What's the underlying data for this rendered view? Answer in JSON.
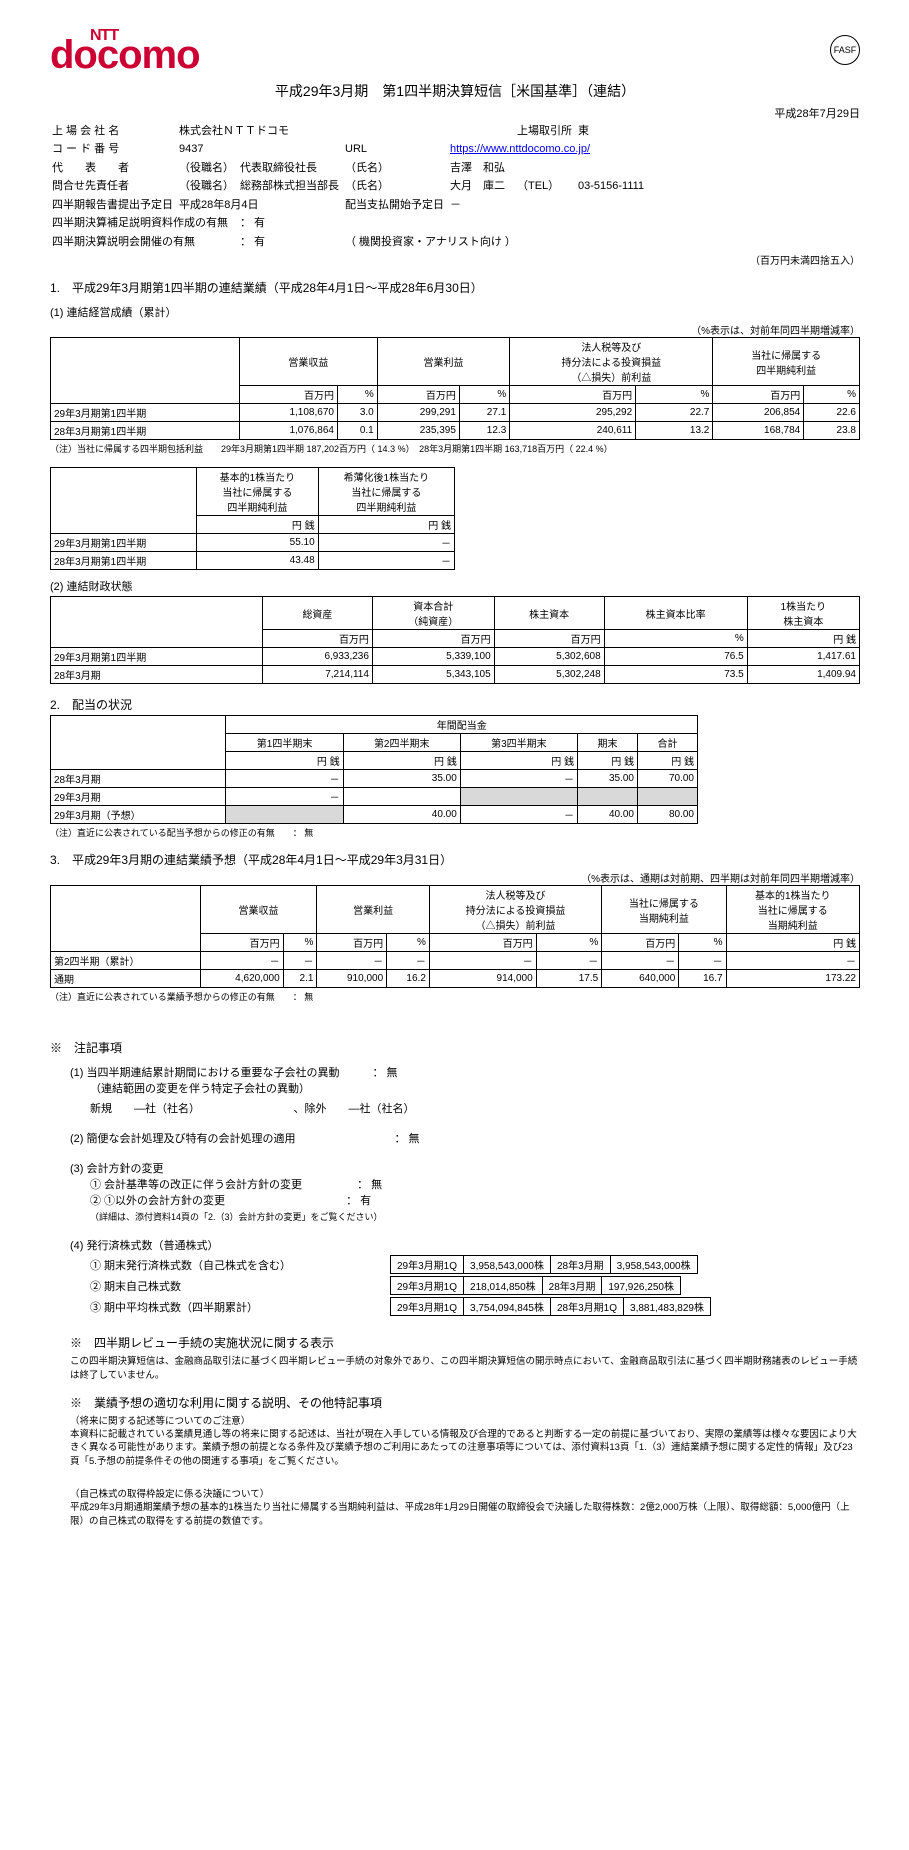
{
  "logo": {
    "ntt": "NTT",
    "main": "docomo",
    "color": "#cc0033"
  },
  "title": "平成29年3月期　第1四半期決算短信［米国基準］（連結）",
  "report_date": "平成28年7月29日",
  "company": {
    "listed_name_lbl": "上 場 会 社 名",
    "listed_name": "株式会社ＮＴＴドコモ",
    "exchange_lbl": "上場取引所",
    "exchange": "東",
    "code_lbl": "コ ー ド 番 号",
    "code": "9437",
    "url_lbl": "URL",
    "url": "https://www.nttdocomo.co.jp/",
    "rep_lbl": "代　　表　　者",
    "rep_title_lbl": "（役職名）",
    "rep_title": "代表取締役社長",
    "name_lbl": "（氏名）",
    "rep_name": "吉澤　和弘",
    "contact_lbl": "問合せ先責任者",
    "contact_title": "総務部株式担当部長",
    "contact_name": "大月　庫二",
    "tel_lbl": "（TEL）",
    "tel": "03-5156-1111",
    "filing_lbl": "四半期報告書提出予定日",
    "filing": "平成28年8月4日",
    "div_start_lbl": "配当支払開始予定日",
    "div_start": "－",
    "supp_lbl": "四半期決算補足説明資料作成の有無",
    "supp": "： 有",
    "briefing_lbl": "四半期決算説明会開催の有無",
    "briefing": "： 有",
    "briefing_note": "（ 機関投資家・アナリスト向け ）",
    "rounding": "（百万円未満四捨五入）"
  },
  "s1": {
    "hdr": "1.　平成29年3月期第1四半期の連結業績（平成28年4月1日～平成28年6月30日）",
    "t1": {
      "sub": "(1) 連結経営成績（累計）",
      "note": "（%表示は、対前年同四半期増減率）",
      "cols": [
        "営業収益",
        "営業利益",
        "法人税等及び\n持分法による投資損益\n（△損失）前利益",
        "当社に帰属する\n四半期純利益"
      ],
      "units": [
        "百万円",
        "%",
        "百万円",
        "%",
        "百万円",
        "%",
        "百万円",
        "%"
      ],
      "rows": [
        {
          "lbl": "29年3月期第1四半期",
          "v": [
            "1,108,670",
            "3.0",
            "299,291",
            "27.1",
            "295,292",
            "22.7",
            "206,854",
            "22.6"
          ]
        },
        {
          "lbl": "28年3月期第1四半期",
          "v": [
            "1,076,864",
            "0.1",
            "235,395",
            "12.3",
            "240,611",
            "13.2",
            "168,784",
            "23.8"
          ]
        }
      ],
      "foot": "（注）当社に帰属する四半期包括利益　　29年3月期第1四半期 187,202百万円（ 14.3 %）　28年3月期第1四半期 163,718百万円（ 22.4 %）"
    },
    "t2": {
      "cols": [
        "基本的1株当たり\n当社に帰属する\n四半期純利益",
        "希薄化後1株当たり\n当社に帰属する\n四半期純利益"
      ],
      "units": [
        "円 銭",
        "円 銭"
      ],
      "rows": [
        {
          "lbl": "29年3月期第1四半期",
          "v": [
            "55.10",
            "－"
          ]
        },
        {
          "lbl": "28年3月期第1四半期",
          "v": [
            "43.48",
            "－"
          ]
        }
      ]
    },
    "t3": {
      "sub": "(2) 連結財政状態",
      "cols": [
        "総資産",
        "資本合計\n（純資産）",
        "株主資本",
        "株主資本比率",
        "1株当たり\n株主資本"
      ],
      "units": [
        "百万円",
        "百万円",
        "百万円",
        "%",
        "円 銭"
      ],
      "rows": [
        {
          "lbl": "29年3月期第1四半期",
          "v": [
            "6,933,236",
            "5,339,100",
            "5,302,608",
            "76.5",
            "1,417.61"
          ]
        },
        {
          "lbl": "28年3月期",
          "v": [
            "7,214,114",
            "5,343,105",
            "5,302,248",
            "73.5",
            "1,409.94"
          ]
        }
      ]
    }
  },
  "s2": {
    "hdr": "2.　配当の状況",
    "top": "年間配当金",
    "cols": [
      "第1四半期末",
      "第2四半期末",
      "第3四半期末",
      "期末",
      "合計"
    ],
    "unit": "円 銭",
    "rows": [
      {
        "lbl": "28年3月期",
        "v": [
          "－",
          "35.00",
          "－",
          "35.00",
          "70.00"
        ]
      },
      {
        "lbl": "29年3月期",
        "v": [
          "－",
          "",
          "",
          "",
          ""
        ],
        "shade": [
          false,
          false,
          true,
          true,
          true
        ]
      },
      {
        "lbl": "29年3月期（予想）",
        "v": [
          "",
          "40.00",
          "－",
          "40.00",
          "80.00"
        ],
        "shade": [
          true,
          false,
          false,
          false,
          false
        ]
      }
    ],
    "foot": "（注）直近に公表されている配当予想からの修正の有無　　： 無"
  },
  "s3": {
    "hdr": "3.　平成29年3月期の連結業績予想（平成28年4月1日～平成29年3月31日）",
    "note": "（%表示は、通期は対前期、四半期は対前年同四半期増減率）",
    "cols": [
      "営業収益",
      "営業利益",
      "法人税等及び\n持分法による投資損益\n（△損失）前利益",
      "当社に帰属する\n当期純利益",
      "基本的1株当たり\n当社に帰属する\n当期純利益"
    ],
    "units": [
      "百万円",
      "%",
      "百万円",
      "%",
      "百万円",
      "%",
      "百万円",
      "%",
      "円 銭"
    ],
    "rows": [
      {
        "lbl": "第2四半期（累計）",
        "v": [
          "－",
          "－",
          "－",
          "－",
          "－",
          "－",
          "－",
          "－",
          "－"
        ]
      },
      {
        "lbl": "通期",
        "v": [
          "4,620,000",
          "2.1",
          "910,000",
          "16.2",
          "914,000",
          "17.5",
          "640,000",
          "16.7",
          "173.22"
        ]
      }
    ],
    "foot": "（注）直近に公表されている業績予想からの修正の有無　　： 無"
  },
  "notes": {
    "hdr": "※　注記事項",
    "n1": {
      "t": "(1) 当四半期連結累計期間における重要な子会社の異動",
      "v": "： 無",
      "sub": "（連結範囲の変更を伴う特定子会社の異動）",
      "line": "新規　　―社（社名）　　　　　　　　　、除外　　―社（社名）"
    },
    "n2": {
      "t": "(2) 簡便な会計処理及び特有の会計処理の適用",
      "v": "： 無"
    },
    "n3": {
      "t": "(3) 会計方針の変更",
      "a": {
        "t": "① 会計基準等の改正に伴う会計方針の変更",
        "v": "： 無"
      },
      "b": {
        "t": "② ①以外の会計方針の変更",
        "v": "： 有"
      },
      "foot": "（詳細は、添付資料14頁の「2.（3）会計方針の変更」をご覧ください）"
    },
    "n4": {
      "t": "(4) 発行済株式数（普通株式）",
      "rows": [
        {
          "lbl": "① 期末発行済株式数（自己株式を含む）",
          "a": [
            "29年3月期1Q",
            "3,958,543,000株"
          ],
          "b": [
            "28年3月期",
            "3,958,543,000株"
          ]
        },
        {
          "lbl": "② 期末自己株式数",
          "a": [
            "29年3月期1Q",
            "218,014,850株"
          ],
          "b": [
            "28年3月期",
            "197,926,250株"
          ]
        },
        {
          "lbl": "③ 期中平均株式数（四半期累計）",
          "a": [
            "29年3月期1Q",
            "3,754,094,845株"
          ],
          "b": [
            "28年3月期1Q",
            "3,881,483,829株"
          ]
        }
      ]
    }
  },
  "review": {
    "hdr": "※　四半期レビュー手続の実施状況に関する表示",
    "body": "この四半期決算短信は、金融商品取引法に基づく四半期レビュー手続の対象外であり、この四半期決算短信の開示時点において、金融商品取引法に基づく四半期財務諸表のレビュー手続は終了していません。"
  },
  "forecast": {
    "hdr": "※　業績予想の適切な利用に関する説明、その他特記事項",
    "sub": "（将来に関する記述等についてのご注意）",
    "body": "本資料に記載されている業績見通し等の将来に関する記述は、当社が現在入手している情報及び合理的であると判断する一定の前提に基づいており、実際の業績等は様々な要因により大きく異なる可能性があります。業績予想の前提となる条件及び業績予想のご利用にあたっての注意事項等については、添付資料13頁「1.（3）連結業績予想に関する定性的情報」及び23頁「5.予想の前提条件その他の関連する事項」をご覧ください。",
    "sub2": "（自己株式の取得枠設定に係る決議について）",
    "body2": "平成29年3月期通期業績予想の基本的1株当たり当社に帰属する当期純利益は、平成28年1月29日開催の取締役会で決議した取得株数：2億2,000万株（上限）、取得総額：5,000億円（上限）の自己株式の取得をする前提の数値です。"
  }
}
